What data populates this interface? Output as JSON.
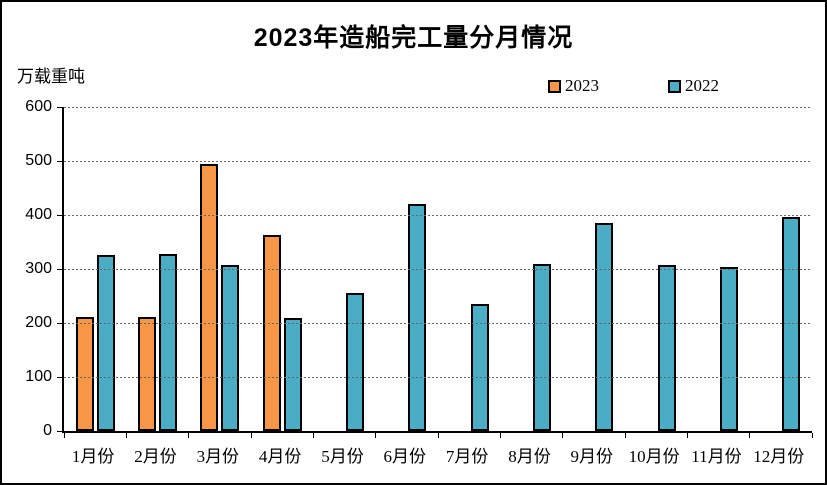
{
  "frame": {
    "background": "#ffffff",
    "border_color": "#000000"
  },
  "chart_data": {
    "type": "bar",
    "title": "2023年造船完工量分月情况",
    "unit_label": "万载重吨",
    "categories": [
      "1月份",
      "2月份",
      "3月份",
      "4月份",
      "5月份",
      "6月份",
      "7月份",
      "8月份",
      "9月份",
      "10月份",
      "11月份",
      "12月份"
    ],
    "series": [
      {
        "name": "2023",
        "color": "#F79646",
        "border_color": "#000000",
        "values": [
          211,
          211,
          494,
          363,
          null,
          null,
          null,
          null,
          null,
          null,
          null,
          null
        ]
      },
      {
        "name": "2022",
        "color": "#4BACC6",
        "border_color": "#000000",
        "values": [
          326,
          328,
          308,
          210,
          256,
          421,
          235,
          309,
          386,
          308,
          304,
          397
        ]
      }
    ],
    "ylim": [
      0,
      600
    ],
    "ytick_step": 100,
    "yticks": [
      600,
      500,
      400,
      300,
      200,
      100,
      0
    ],
    "grid": "horizontal-dotted",
    "legend_position": "top"
  }
}
